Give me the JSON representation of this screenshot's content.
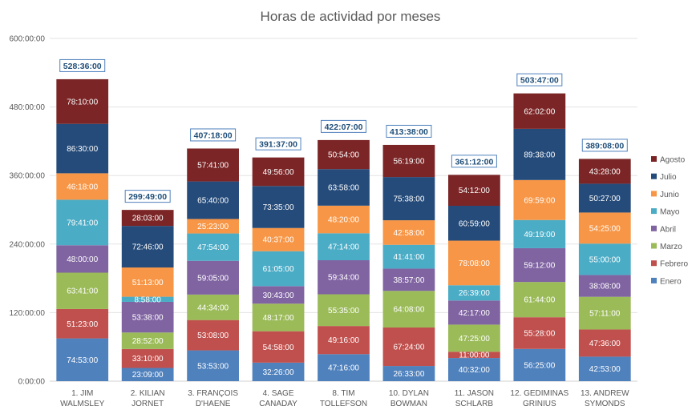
{
  "chart_data": {
    "type": "bar",
    "stacked": true,
    "title": "Horas de actividad por meses",
    "xlabel": "",
    "ylabel": "",
    "ylim": [
      0,
      600
    ],
    "y_unit": "hours",
    "y_ticks": [
      "0:00:00",
      "120:00:00",
      "240:00:00",
      "360:00:00",
      "480:00:00",
      "600:00:00"
    ],
    "grid": true,
    "legend_position": "right",
    "categories": [
      [
        "1. JIM",
        "WALMSLEY"
      ],
      [
        "2. KILIAN",
        "JORNET"
      ],
      [
        "3. FRANÇOIS",
        "D'HAENE"
      ],
      [
        "4. SAGE",
        "CANADAY"
      ],
      [
        "8. TIM",
        "TOLLEFSON"
      ],
      [
        "10. DYLAN",
        "BOWMAN"
      ],
      [
        "11. JASON",
        "SCHLARB"
      ],
      [
        "12. GEDIMINAS",
        "GRINIUS"
      ],
      [
        "13. ANDREW",
        "SYMONDS"
      ]
    ],
    "totals": [
      "528:36:00",
      "299:49:00",
      "407:18:00",
      "391:37:00",
      "422:07:00",
      "413:38:00",
      "361:12:00",
      "503:47:00",
      "389:08:00"
    ],
    "series": [
      {
        "name": "Enero",
        "color": "#4f81bd",
        "labels": [
          "74:53:00",
          "23:09:00",
          "53:53:00",
          "32:26:00",
          "47:16:00",
          "26:33:00",
          "40:32:00",
          "56:25:00",
          "42:53:00"
        ]
      },
      {
        "name": "Febrero",
        "color": "#c0504d",
        "labels": [
          "51:23:00",
          "33:10:00",
          "53:08:00",
          "54:58:00",
          "49:16:00",
          "67:24:00",
          "11:00:00",
          "55:28:00",
          "47:36:00"
        ]
      },
      {
        "name": "Marzo",
        "color": "#9bbb59",
        "labels": [
          "63:41:00",
          "28:52:00",
          "44:34:00",
          "48:17:00",
          "55:35:00",
          "64:08:00",
          "47:25:00",
          "61:44:00",
          "57:11:00"
        ]
      },
      {
        "name": "Abril",
        "color": "#8064a2",
        "labels": [
          "48:00:00",
          "53:38:00",
          "59:05:00",
          "30:43:00",
          "59:34:00",
          "38:57:00",
          "42:17:00",
          "59:12:00",
          "38:08:00"
        ]
      },
      {
        "name": "Mayo",
        "color": "#4bacc6",
        "labels": [
          "79:41:00",
          "8:58:00",
          "47:54:00",
          "61:05:00",
          "47:14:00",
          "41:41:00",
          "26:39:00",
          "49:19:00",
          "55:00:00"
        ]
      },
      {
        "name": "Junio",
        "color": "#f79646",
        "labels": [
          "46:18:00",
          "51:13:00",
          "25:23:00",
          "40:37:00",
          "48:20:00",
          "42:58:00",
          "78:08:00",
          "69:59:00",
          "54:25:00"
        ]
      },
      {
        "name": "Julio",
        "color": "#254b7a",
        "labels": [
          "86:30:00",
          "72:46:00",
          "65:40:00",
          "73:35:00",
          "63:58:00",
          "75:38:00",
          "60:59:00",
          "89:38:00",
          "50:27:00"
        ]
      },
      {
        "name": "Agosto",
        "color": "#7b2526",
        "labels": [
          "78:10:00",
          "28:03:00",
          "57:41:00",
          "49:56:00",
          "50:54:00",
          "56:19:00",
          "54:12:00",
          "62:02:00",
          "43:28:00"
        ]
      }
    ]
  }
}
